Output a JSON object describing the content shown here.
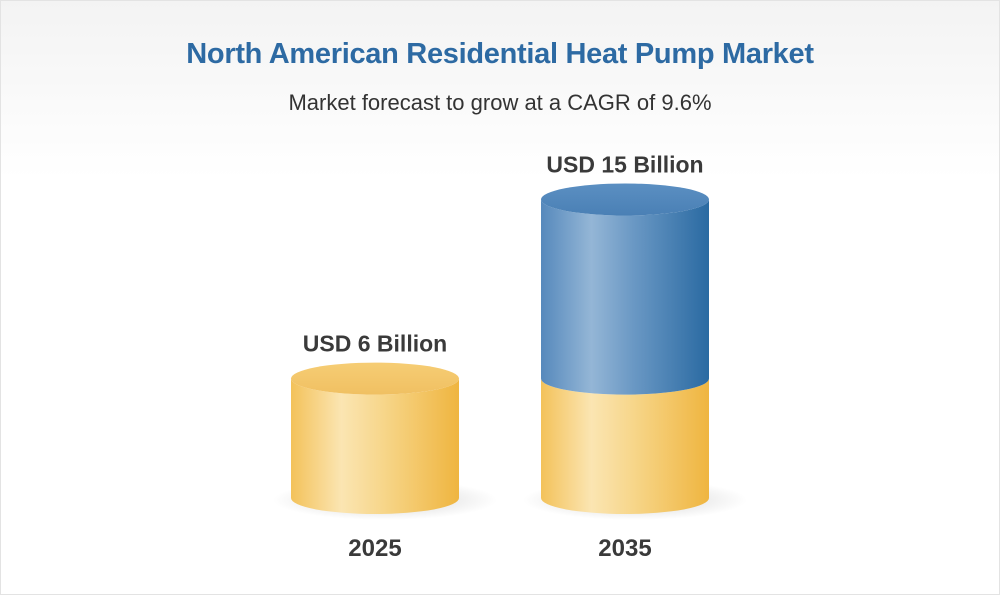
{
  "header": {
    "title": "North American Residential Heat Pump Market",
    "subtitle": "Market forecast to grow at a CAGR of 9.6%"
  },
  "chart_data": {
    "type": "bar",
    "title": "North American Residential Heat Pump Market",
    "subtitle": "Market forecast to grow at a CAGR of 9.6%",
    "categories": [
      "2025",
      "2035"
    ],
    "values": [
      6,
      15
    ],
    "value_labels": [
      "USD 6 Billion",
      "USD 15 Billion"
    ],
    "unit": "USD Billion",
    "xlabel": "",
    "ylabel": "",
    "grid": false,
    "colors": {
      "base_segment": "#f5c45a",
      "growth_segment": "#3f78ae"
    }
  }
}
